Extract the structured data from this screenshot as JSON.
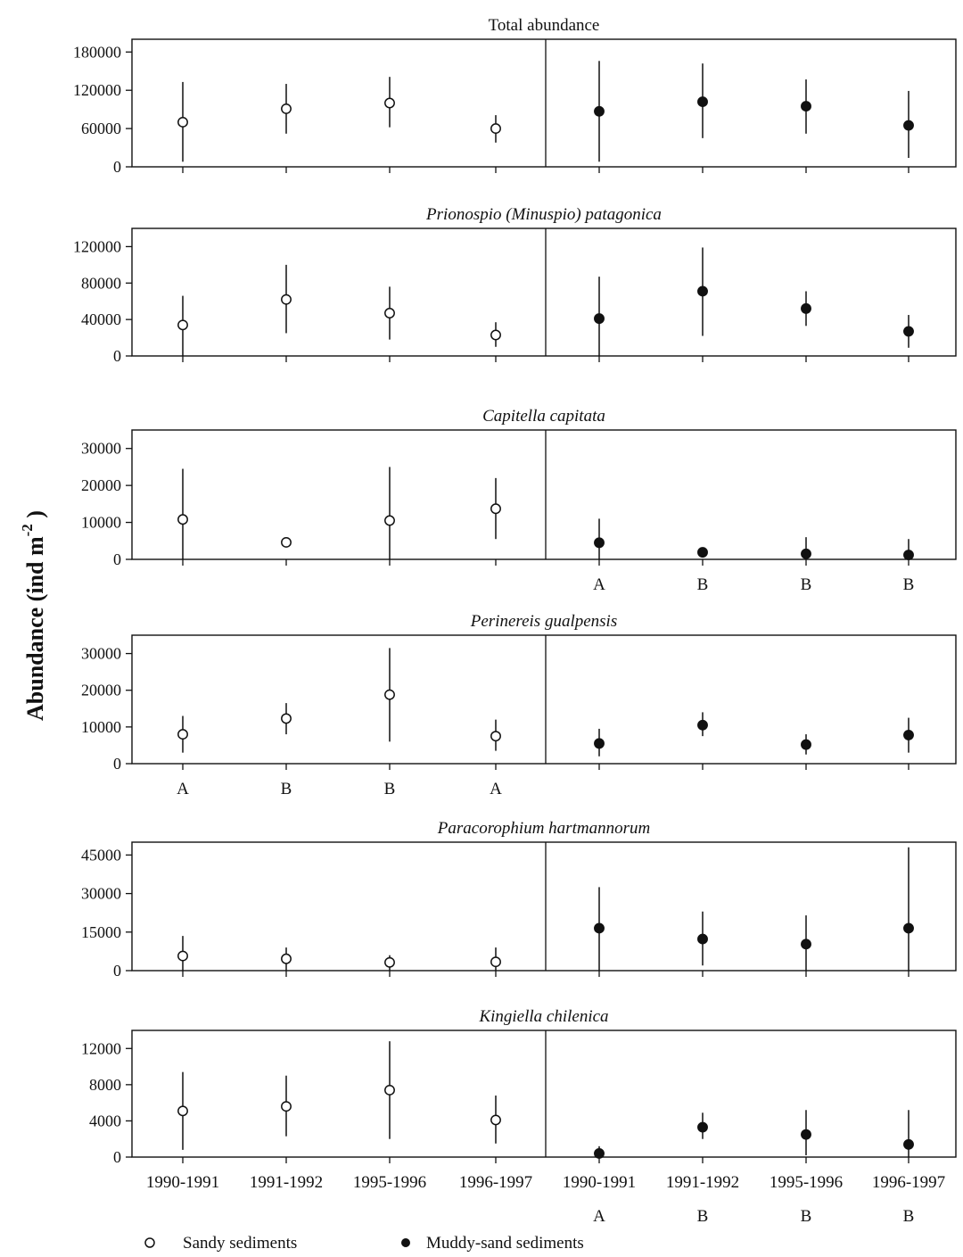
{
  "y_axis_label": "Abundance (ind m",
  "y_axis_label_exponent": "-2",
  "y_axis_label_close": ")",
  "legend": {
    "sandy": {
      "label": "Sandy sediments",
      "marker": "open-circle"
    },
    "muddy": {
      "label": "Muddy-sand sediments",
      "marker": "filled-circle"
    }
  },
  "chart_data": [
    {
      "type": "scatter",
      "id": "total",
      "title": "Total abundance",
      "title_italic": false,
      "categories": [
        "1990-1991",
        "1991-1992",
        "1995-1996",
        "1996-1997",
        "1990-1991",
        "1991-1992",
        "1995-1996",
        "1996-1997"
      ],
      "ylim": [
        0,
        200000
      ],
      "yticks": [
        0,
        60000,
        120000,
        180000
      ],
      "series": [
        {
          "name": "Sandy sediments",
          "marker": "open",
          "values": [
            70000,
            91000,
            100000,
            60000
          ],
          "err_low": [
            8000,
            52000,
            62000,
            38000
          ],
          "err_high": [
            133000,
            130000,
            141000,
            81000
          ]
        },
        {
          "name": "Muddy-sand sediments",
          "marker": "filled",
          "values": [
            87000,
            102000,
            95000,
            65000
          ],
          "err_low": [
            8000,
            45000,
            52000,
            14000
          ],
          "err_high": [
            166000,
            162000,
            137000,
            119000
          ]
        }
      ],
      "letters_top": [],
      "letters_bottom": []
    },
    {
      "type": "scatter",
      "id": "prionospio",
      "title": "Prionospio (Minuspio) patagonica",
      "title_italic": true,
      "ylim": [
        0,
        140000
      ],
      "yticks": [
        0,
        40000,
        80000,
        120000
      ],
      "series": [
        {
          "name": "Sandy sediments",
          "marker": "open",
          "values": [
            34000,
            62000,
            47000,
            23000
          ],
          "err_low": [
            0,
            25000,
            18000,
            10000
          ],
          "err_high": [
            66000,
            100000,
            76000,
            37000
          ]
        },
        {
          "name": "Muddy-sand sediments",
          "marker": "filled",
          "values": [
            41000,
            71000,
            52000,
            27000
          ],
          "err_low": [
            0,
            22000,
            33000,
            9000
          ],
          "err_high": [
            87000,
            119000,
            71000,
            45000
          ]
        }
      ],
      "letters_top": [],
      "letters_bottom": []
    },
    {
      "type": "scatter",
      "id": "capitella",
      "title": "Capitella capitata",
      "title_italic": true,
      "ylim": [
        0,
        35000
      ],
      "yticks": [
        0,
        10000,
        20000,
        30000
      ],
      "series": [
        {
          "name": "Sandy sediments",
          "marker": "open",
          "values": [
            10800,
            4600,
            10500,
            13700
          ],
          "err_low": [
            0,
            3500,
            0,
            5500
          ],
          "err_high": [
            24500,
            5600,
            25000,
            22000
          ]
        },
        {
          "name": "Muddy-sand sediments",
          "marker": "filled",
          "values": [
            4500,
            1900,
            1500,
            1200
          ],
          "err_low": [
            0,
            800,
            0,
            0
          ],
          "err_high": [
            11000,
            2800,
            6000,
            5500
          ]
        }
      ],
      "letters_top": [],
      "letters_bottom": [
        "",
        "",
        "",
        "",
        "A",
        "B",
        "B",
        "B"
      ]
    },
    {
      "type": "scatter",
      "id": "perinereis",
      "title": "Perinereis gualpensis",
      "title_italic": true,
      "ylim": [
        0,
        35000
      ],
      "yticks": [
        0,
        10000,
        20000,
        30000
      ],
      "series": [
        {
          "name": "Sandy sediments",
          "marker": "open",
          "values": [
            8000,
            12300,
            18800,
            7500
          ],
          "err_low": [
            3000,
            8000,
            6000,
            3500
          ],
          "err_high": [
            13000,
            16500,
            31500,
            12000
          ]
        },
        {
          "name": "Muddy-sand sediments",
          "marker": "filled",
          "values": [
            5500,
            10500,
            5200,
            7800
          ],
          "err_low": [
            2000,
            7500,
            2500,
            3000
          ],
          "err_high": [
            9500,
            14000,
            8000,
            12500
          ]
        }
      ],
      "letters_top": [],
      "letters_bottom": [
        "A",
        "B",
        "B",
        "A",
        "",
        "",
        "",
        ""
      ]
    },
    {
      "type": "scatter",
      "id": "paracorophium",
      "title": "Paracorophium hartmannorum",
      "title_italic": true,
      "ylim": [
        0,
        50000
      ],
      "yticks": [
        0,
        15000,
        30000,
        45000
      ],
      "series": [
        {
          "name": "Sandy sediments",
          "marker": "open",
          "values": [
            5700,
            4600,
            3200,
            3400
          ],
          "err_low": [
            0,
            0,
            0,
            0
          ],
          "err_high": [
            13500,
            9000,
            6000,
            9000
          ]
        },
        {
          "name": "Muddy-sand sediments",
          "marker": "filled",
          "values": [
            16500,
            12300,
            10300,
            16500
          ],
          "err_low": [
            0,
            2000,
            0,
            0
          ],
          "err_high": [
            32500,
            23000,
            21500,
            48000
          ]
        }
      ],
      "letters_top": [],
      "letters_bottom": []
    },
    {
      "type": "scatter",
      "id": "kingiella",
      "title": "Kingiella chilenica",
      "title_italic": true,
      "ylim": [
        0,
        14000
      ],
      "yticks": [
        0,
        4000,
        8000,
        12000
      ],
      "series": [
        {
          "name": "Sandy sediments",
          "marker": "open",
          "values": [
            5100,
            5600,
            7400,
            4100
          ],
          "err_low": [
            800,
            2300,
            2000,
            1500
          ],
          "err_high": [
            9400,
            9000,
            12800,
            6800
          ]
        },
        {
          "name": "Muddy-sand sediments",
          "marker": "filled",
          "values": [
            400,
            3300,
            2500,
            1400
          ],
          "err_low": [
            0,
            2000,
            200,
            0
          ],
          "err_high": [
            1200,
            4900,
            5200,
            5200
          ]
        }
      ],
      "letters_top": [],
      "letters_bottom": [
        "",
        "",
        "",
        "",
        "A",
        "B",
        "B",
        "B"
      ],
      "show_category_labels": true
    }
  ]
}
